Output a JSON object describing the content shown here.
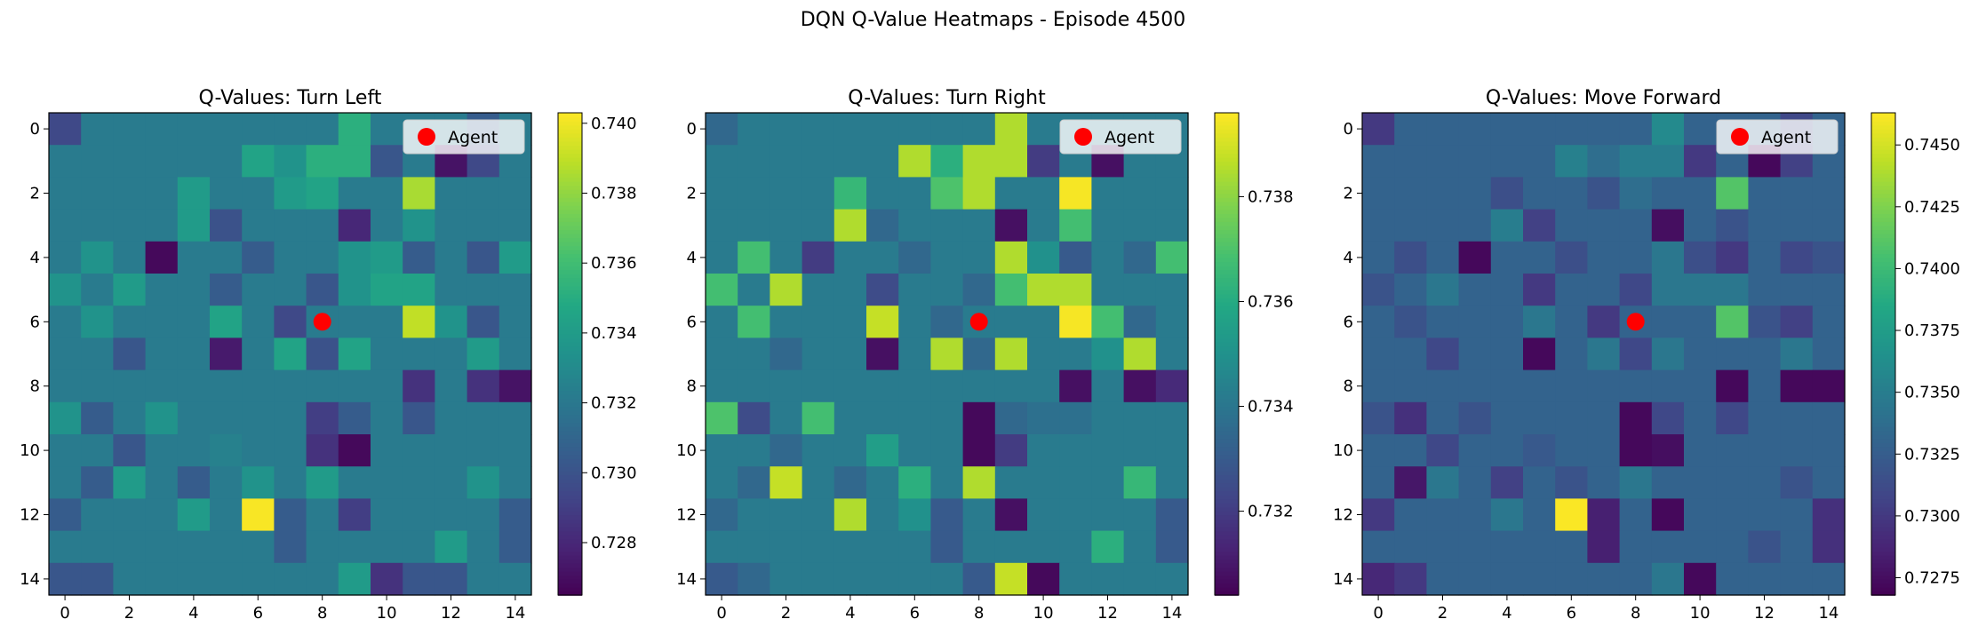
{
  "figure_title": "DQN Q-Value Heatmaps - Episode 4500",
  "legend_label": "Agent",
  "agent_color": "#ff0000",
  "colormap": "viridis",
  "chart_data": [
    {
      "type": "heatmap",
      "title": "Q-Values: Turn Left",
      "xlabel": "",
      "ylabel": "",
      "x_ticks": [
        0,
        2,
        4,
        6,
        8,
        10,
        12,
        14
      ],
      "y_ticks": [
        0,
        2,
        4,
        6,
        8,
        10,
        12,
        14
      ],
      "grid_size": 15,
      "agent": {
        "x": 8,
        "y": 6
      },
      "legend_position": "upper right",
      "colorbar": {
        "min": 0.7265,
        "max": 0.7403,
        "ticks": [
          "0.728",
          "0.730",
          "0.732",
          "0.734",
          "0.736",
          "0.738",
          "0.740"
        ]
      },
      "values": [
        [
          0.7295,
          0.7322,
          0.7322,
          0.7322,
          0.7322,
          0.7322,
          0.7322,
          0.7322,
          0.7322,
          0.7352,
          0.7322,
          0.7322,
          0.7322,
          0.7305,
          0.7322
        ],
        [
          0.7322,
          0.7322,
          0.7322,
          0.7322,
          0.7322,
          0.7322,
          0.7345,
          0.7335,
          0.7352,
          0.7352,
          0.7302,
          0.7322,
          0.7272,
          0.7295,
          0.7322
        ],
        [
          0.7322,
          0.7322,
          0.7322,
          0.7322,
          0.734,
          0.7322,
          0.7322,
          0.734,
          0.7345,
          0.7322,
          0.7322,
          0.7385,
          0.7322,
          0.7322,
          0.7322
        ],
        [
          0.7322,
          0.7322,
          0.7322,
          0.7322,
          0.734,
          0.73,
          0.7322,
          0.7322,
          0.7322,
          0.728,
          0.7322,
          0.7335,
          0.7322,
          0.7322,
          0.7322
        ],
        [
          0.7322,
          0.7335,
          0.7322,
          0.7268,
          0.7322,
          0.7322,
          0.7305,
          0.7322,
          0.7322,
          0.7335,
          0.734,
          0.7305,
          0.7322,
          0.7302,
          0.734
        ],
        [
          0.7335,
          0.7322,
          0.734,
          0.7322,
          0.7322,
          0.7305,
          0.7322,
          0.7322,
          0.7302,
          0.7335,
          0.7345,
          0.7345,
          0.7322,
          0.7322,
          0.7322
        ],
        [
          0.7322,
          0.7335,
          0.7322,
          0.7322,
          0.7322,
          0.7345,
          0.7322,
          0.7295,
          0.7322,
          0.7322,
          0.7322,
          0.739,
          0.7335,
          0.7302,
          0.7322
        ],
        [
          0.7322,
          0.7322,
          0.7302,
          0.7322,
          0.7322,
          0.7275,
          0.7322,
          0.7345,
          0.73,
          0.7345,
          0.7322,
          0.7322,
          0.7322,
          0.734,
          0.7322
        ],
        [
          0.7322,
          0.7322,
          0.7322,
          0.7322,
          0.7322,
          0.7322,
          0.7322,
          0.7322,
          0.7322,
          0.7322,
          0.7322,
          0.7285,
          0.7322,
          0.7285,
          0.7272
        ],
        [
          0.7335,
          0.7305,
          0.7322,
          0.7335,
          0.7322,
          0.7322,
          0.7322,
          0.7322,
          0.729,
          0.7305,
          0.7322,
          0.7302,
          0.7322,
          0.7322,
          0.7322
        ],
        [
          0.7322,
          0.7322,
          0.7302,
          0.7322,
          0.7322,
          0.7325,
          0.7322,
          0.7322,
          0.7285,
          0.7268,
          0.7322,
          0.7322,
          0.7322,
          0.7322,
          0.7322
        ],
        [
          0.7322,
          0.7305,
          0.734,
          0.7322,
          0.7305,
          0.7322,
          0.7335,
          0.7322,
          0.734,
          0.7322,
          0.7322,
          0.7322,
          0.7322,
          0.7335,
          0.7322
        ],
        [
          0.7305,
          0.7322,
          0.7322,
          0.7322,
          0.734,
          0.7322,
          0.7402,
          0.7305,
          0.7322,
          0.729,
          0.7322,
          0.7322,
          0.7322,
          0.7322,
          0.7305
        ],
        [
          0.7322,
          0.7322,
          0.7322,
          0.7322,
          0.7322,
          0.7322,
          0.7322,
          0.7305,
          0.7322,
          0.7322,
          0.7322,
          0.7322,
          0.734,
          0.7322,
          0.7305
        ],
        [
          0.7302,
          0.7302,
          0.7322,
          0.7322,
          0.7322,
          0.7322,
          0.7322,
          0.7322,
          0.7322,
          0.734,
          0.7285,
          0.7302,
          0.7302,
          0.7322,
          0.7322
        ]
      ]
    },
    {
      "type": "heatmap",
      "title": "Q-Values: Turn Right",
      "xlabel": "",
      "ylabel": "",
      "x_ticks": [
        0,
        2,
        4,
        6,
        8,
        10,
        12,
        14
      ],
      "y_ticks": [
        0,
        2,
        4,
        6,
        8,
        10,
        12,
        14
      ],
      "grid_size": 15,
      "agent": {
        "x": 8,
        "y": 6
      },
      "legend_position": "upper right",
      "colorbar": {
        "min": 0.7304,
        "max": 0.7396,
        "ticks": [
          "0.732",
          "0.734",
          "0.736",
          "0.738"
        ]
      },
      "values": [
        [
          0.7335,
          0.7342,
          0.7342,
          0.7342,
          0.7342,
          0.7342,
          0.7342,
          0.7342,
          0.7342,
          0.7385,
          0.7342,
          0.7342,
          0.7342,
          0.7342,
          0.7342
        ],
        [
          0.7342,
          0.7342,
          0.7342,
          0.7342,
          0.7342,
          0.7342,
          0.7385,
          0.7362,
          0.7385,
          0.7385,
          0.732,
          0.7342,
          0.7308,
          0.7342,
          0.7342
        ],
        [
          0.7342,
          0.7342,
          0.7342,
          0.7342,
          0.7365,
          0.7342,
          0.7342,
          0.737,
          0.7385,
          0.7342,
          0.7342,
          0.7395,
          0.7342,
          0.7342,
          0.7342
        ],
        [
          0.7342,
          0.7342,
          0.7342,
          0.7342,
          0.7385,
          0.7335,
          0.7342,
          0.7342,
          0.7342,
          0.7308,
          0.7342,
          0.7368,
          0.7342,
          0.7342,
          0.7342
        ],
        [
          0.7342,
          0.7368,
          0.7342,
          0.732,
          0.7342,
          0.7342,
          0.7335,
          0.7342,
          0.7342,
          0.7385,
          0.735,
          0.733,
          0.7342,
          0.7335,
          0.7368
        ],
        [
          0.7368,
          0.7342,
          0.7385,
          0.7342,
          0.7342,
          0.7325,
          0.7342,
          0.7342,
          0.7335,
          0.7368,
          0.7385,
          0.7385,
          0.7342,
          0.7342,
          0.7342
        ],
        [
          0.7342,
          0.7368,
          0.7342,
          0.7342,
          0.7342,
          0.7388,
          0.7342,
          0.7335,
          0.7342,
          0.7342,
          0.7342,
          0.7395,
          0.7368,
          0.7335,
          0.7342
        ],
        [
          0.7342,
          0.7342,
          0.7335,
          0.7342,
          0.7342,
          0.7308,
          0.7342,
          0.7385,
          0.7335,
          0.7385,
          0.7342,
          0.7342,
          0.735,
          0.7385,
          0.7342
        ],
        [
          0.7342,
          0.7342,
          0.7342,
          0.7342,
          0.7342,
          0.7342,
          0.7342,
          0.7342,
          0.7342,
          0.7342,
          0.7342,
          0.7308,
          0.7342,
          0.7308,
          0.7315
        ],
        [
          0.737,
          0.7325,
          0.7342,
          0.7368,
          0.7342,
          0.7342,
          0.7342,
          0.7342,
          0.7306,
          0.7335,
          0.7338,
          0.7338,
          0.7342,
          0.7342,
          0.7342
        ],
        [
          0.7342,
          0.7342,
          0.7335,
          0.7342,
          0.7342,
          0.7355,
          0.7342,
          0.7342,
          0.7306,
          0.732,
          0.7342,
          0.7342,
          0.7342,
          0.7342,
          0.7342
        ],
        [
          0.7342,
          0.7335,
          0.7388,
          0.7342,
          0.7335,
          0.7342,
          0.7362,
          0.7342,
          0.7385,
          0.7342,
          0.7342,
          0.7342,
          0.7342,
          0.7365,
          0.7342
        ],
        [
          0.7335,
          0.7342,
          0.7342,
          0.7342,
          0.7385,
          0.7342,
          0.735,
          0.733,
          0.7342,
          0.7308,
          0.7342,
          0.7342,
          0.7342,
          0.7342,
          0.733
        ],
        [
          0.7342,
          0.7342,
          0.7342,
          0.7342,
          0.7342,
          0.7342,
          0.7342,
          0.733,
          0.7342,
          0.7342,
          0.7342,
          0.7342,
          0.7362,
          0.7342,
          0.733
        ],
        [
          0.733,
          0.7335,
          0.7342,
          0.7342,
          0.7342,
          0.7342,
          0.7342,
          0.7342,
          0.733,
          0.7388,
          0.7306,
          0.7342,
          0.7342,
          0.7342,
          0.7342
        ]
      ]
    },
    {
      "type": "heatmap",
      "title": "Q-Values: Move Forward",
      "xlabel": "",
      "ylabel": "",
      "x_ticks": [
        0,
        2,
        4,
        6,
        8,
        10,
        12,
        14
      ],
      "y_ticks": [
        0,
        2,
        4,
        6,
        8,
        10,
        12,
        14
      ],
      "grid_size": 15,
      "agent": {
        "x": 8,
        "y": 6
      },
      "legend_position": "upper right",
      "colorbar": {
        "min": 0.7268,
        "max": 0.7463,
        "ticks": [
          "0.7275",
          "0.7300",
          "0.7325",
          "0.7350",
          "0.7375",
          "0.7400",
          "0.7425",
          "0.7450"
        ]
      },
      "values": [
        [
          0.73,
          0.733,
          0.733,
          0.733,
          0.733,
          0.733,
          0.733,
          0.733,
          0.733,
          0.736,
          0.733,
          0.733,
          0.733,
          0.731,
          0.733
        ],
        [
          0.733,
          0.733,
          0.733,
          0.733,
          0.733,
          0.733,
          0.7352,
          0.7338,
          0.735,
          0.735,
          0.73,
          0.733,
          0.7272,
          0.7305,
          0.733
        ],
        [
          0.733,
          0.733,
          0.733,
          0.733,
          0.7315,
          0.733,
          0.733,
          0.7318,
          0.7338,
          0.733,
          0.733,
          0.741,
          0.733,
          0.733,
          0.733
        ],
        [
          0.733,
          0.733,
          0.733,
          0.733,
          0.735,
          0.7305,
          0.733,
          0.733,
          0.733,
          0.7275,
          0.733,
          0.7318,
          0.733,
          0.733,
          0.733
        ],
        [
          0.733,
          0.7315,
          0.733,
          0.7272,
          0.733,
          0.733,
          0.7315,
          0.733,
          0.733,
          0.7345,
          0.7315,
          0.73,
          0.733,
          0.731,
          0.7318
        ],
        [
          0.7318,
          0.733,
          0.7345,
          0.733,
          0.733,
          0.73,
          0.733,
          0.733,
          0.731,
          0.7345,
          0.7345,
          0.7345,
          0.733,
          0.733,
          0.733
        ],
        [
          0.733,
          0.7318,
          0.733,
          0.733,
          0.733,
          0.7345,
          0.733,
          0.73,
          0.733,
          0.733,
          0.733,
          0.741,
          0.7318,
          0.7305,
          0.733
        ],
        [
          0.733,
          0.733,
          0.731,
          0.733,
          0.733,
          0.7272,
          0.733,
          0.7345,
          0.731,
          0.7345,
          0.733,
          0.733,
          0.733,
          0.7345,
          0.733
        ],
        [
          0.733,
          0.733,
          0.733,
          0.733,
          0.733,
          0.733,
          0.733,
          0.733,
          0.733,
          0.733,
          0.733,
          0.7272,
          0.733,
          0.7272,
          0.7272
        ],
        [
          0.7318,
          0.7295,
          0.733,
          0.7318,
          0.733,
          0.733,
          0.733,
          0.733,
          0.7272,
          0.731,
          0.733,
          0.731,
          0.733,
          0.733,
          0.733
        ],
        [
          0.733,
          0.733,
          0.731,
          0.733,
          0.733,
          0.7322,
          0.733,
          0.733,
          0.7272,
          0.7275,
          0.733,
          0.733,
          0.733,
          0.733,
          0.733
        ],
        [
          0.733,
          0.728,
          0.7345,
          0.733,
          0.7305,
          0.733,
          0.7318,
          0.733,
          0.7345,
          0.733,
          0.733,
          0.733,
          0.733,
          0.7318,
          0.733
        ],
        [
          0.73,
          0.733,
          0.733,
          0.733,
          0.7345,
          0.733,
          0.7462,
          0.7285,
          0.733,
          0.7272,
          0.733,
          0.733,
          0.733,
          0.733,
          0.7295
        ],
        [
          0.733,
          0.733,
          0.733,
          0.733,
          0.733,
          0.733,
          0.733,
          0.7285,
          0.733,
          0.733,
          0.733,
          0.733,
          0.7318,
          0.733,
          0.7295
        ],
        [
          0.729,
          0.73,
          0.733,
          0.733,
          0.733,
          0.733,
          0.733,
          0.733,
          0.733,
          0.7345,
          0.7272,
          0.733,
          0.733,
          0.733,
          0.733
        ]
      ]
    }
  ]
}
